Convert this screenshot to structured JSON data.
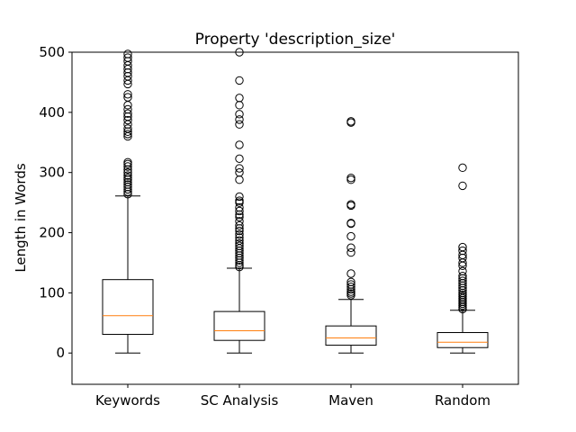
{
  "chart_data": {
    "type": "boxplot",
    "title": "Property 'description_size'",
    "xlabel": "",
    "ylabel": "Length in Words",
    "ylim": [
      -52,
      500
    ],
    "yticks": [
      0,
      100,
      200,
      300,
      400,
      500
    ],
    "grid": false,
    "categories": [
      "Keywords",
      "SC Analysis",
      "Maven",
      "Random"
    ],
    "boxes": [
      {
        "name": "Keywords",
        "whisker_low": 0,
        "q1": 31,
        "median": 62,
        "q3": 122,
        "whisker_high": 261,
        "fliers": [
          264,
          268,
          272,
          276,
          280,
          284,
          288,
          291,
          295,
          300,
          305,
          310,
          314,
          317,
          360,
          364,
          368,
          373,
          380,
          387,
          393,
          398,
          405,
          412,
          425,
          430,
          447,
          453,
          460,
          466,
          472,
          478,
          485,
          491,
          497
        ]
      },
      {
        "name": "SC Analysis",
        "whisker_low": 0,
        "q1": 21,
        "median": 37,
        "q3": 69,
        "whisker_high": 141,
        "fliers": [
          143,
          146,
          150,
          154,
          158,
          162,
          166,
          170,
          174,
          178,
          182,
          187,
          192,
          197,
          203,
          207,
          212,
          219,
          226,
          230,
          236,
          242,
          250,
          253,
          260,
          288,
          300,
          307,
          323,
          346,
          380,
          388,
          397,
          412,
          424,
          453,
          500
        ]
      },
      {
        "name": "Maven",
        "whisker_low": 0,
        "q1": 13,
        "median": 25,
        "q3": 45,
        "whisker_high": 89,
        "fliers": [
          96,
          99,
          102,
          106,
          110,
          114,
          118,
          132,
          167,
          175,
          194,
          215,
          216,
          245,
          247,
          288,
          291,
          383,
          385
        ]
      },
      {
        "name": "Random",
        "whisker_low": 0,
        "q1": 9,
        "median": 18,
        "q3": 34,
        "whisker_high": 71,
        "fliers": [
          73,
          76,
          79,
          82,
          85,
          88,
          91,
          94,
          97,
          100,
          104,
          108,
          112,
          116,
          120,
          124,
          128,
          136,
          145,
          150,
          158,
          163,
          170,
          176,
          278,
          308
        ]
      }
    ],
    "colors": {
      "box": "#000000",
      "median": "#ff7f0e",
      "flier": "#000000"
    }
  }
}
